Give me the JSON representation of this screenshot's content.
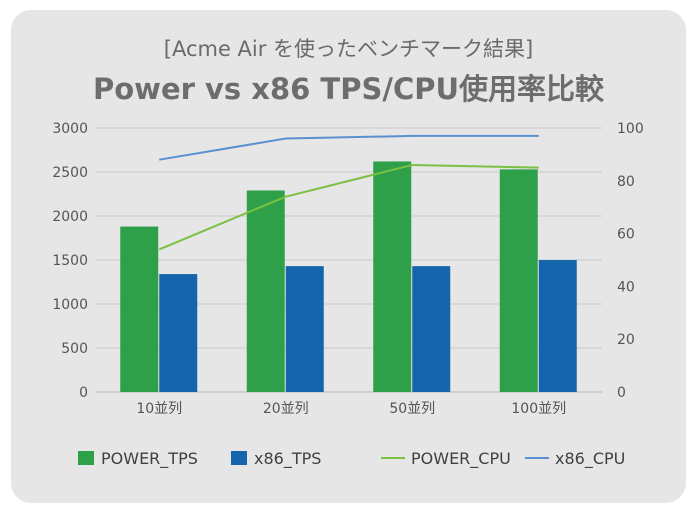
{
  "chart_data": {
    "type": "bar",
    "subtitle": "[Acme Air を使ったベンチマーク結果]",
    "title": "Power vs x86 TPS/CPU使用率比較",
    "categories": [
      "10並列",
      "20並列",
      "50並列",
      "100並列"
    ],
    "bar_series": [
      {
        "name": "POWER_TPS",
        "color": "#2ea04a",
        "values": [
          1880,
          2290,
          2620,
          2530
        ]
      },
      {
        "name": "x86_TPS",
        "color": "#1565ac",
        "values": [
          1340,
          1430,
          1430,
          1500
        ]
      }
    ],
    "line_series": [
      {
        "name": "POWER_CPU",
        "color": "#7ac142",
        "axis": "right",
        "values": [
          54,
          74,
          86,
          85
        ]
      },
      {
        "name": "x86_CPU",
        "color": "#5b8fd0",
        "axis": "right",
        "values": [
          88,
          96,
          97,
          97
        ]
      }
    ],
    "y_left": {
      "min": 0,
      "max": 3000,
      "ticks": [
        0,
        500,
        1000,
        1500,
        2000,
        2500,
        3000
      ]
    },
    "y_right": {
      "min": 0,
      "max": 100,
      "ticks": [
        0,
        20,
        40,
        60,
        80,
        100
      ]
    },
    "grid": true,
    "legend_position": "bottom"
  }
}
